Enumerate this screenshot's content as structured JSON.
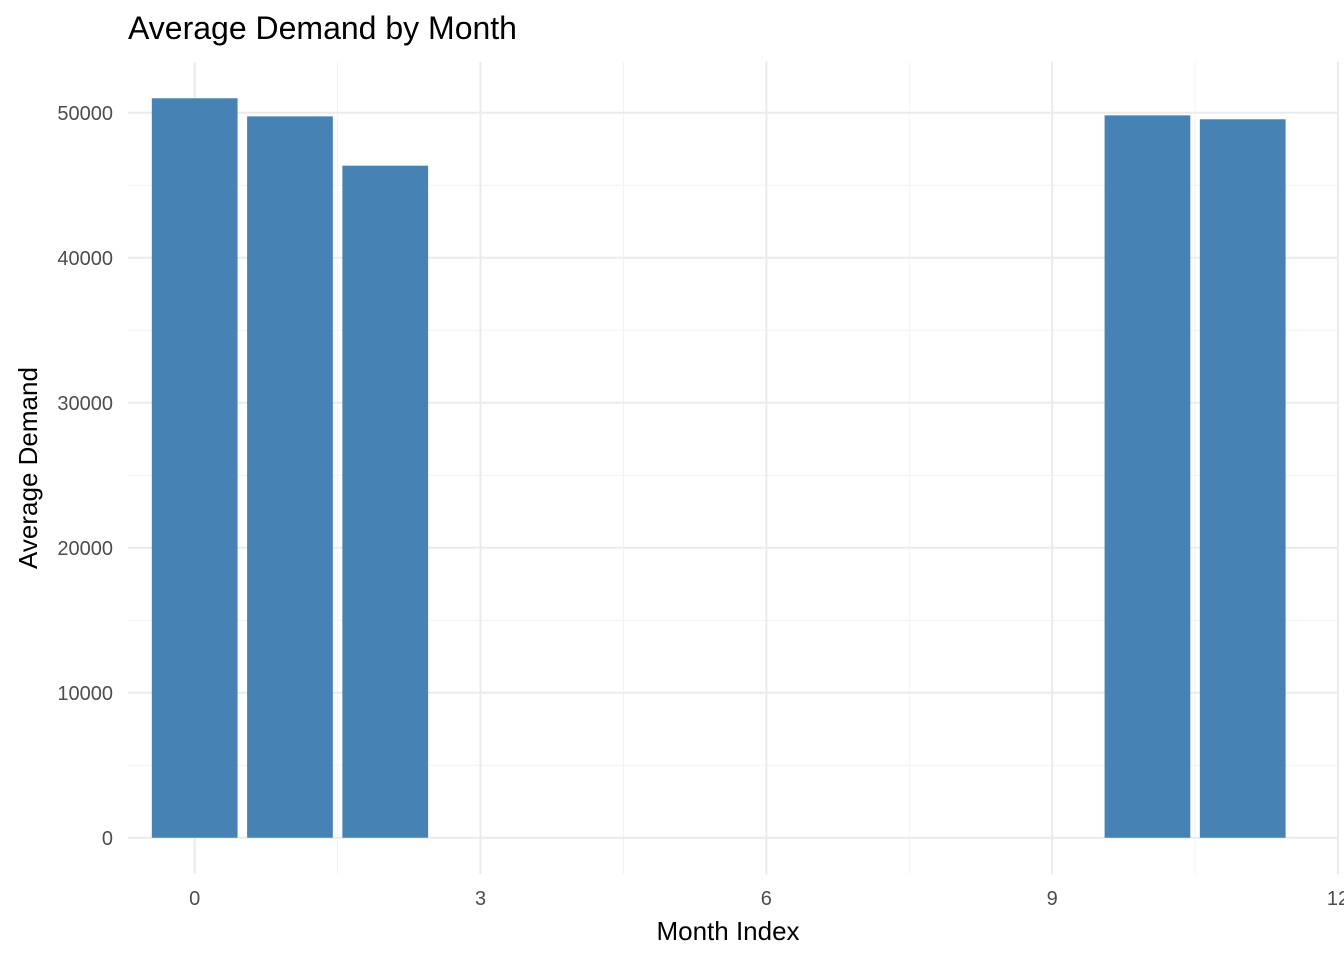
{
  "chart_data": {
    "type": "bar",
    "title": "Average Demand by Month",
    "xlabel": "Month Index",
    "ylabel": "Average Demand",
    "x": [
      0,
      1,
      2,
      10,
      11
    ],
    "values": [
      51000,
      49750,
      46350,
      49820,
      49550
    ],
    "xlim": [
      -0.7,
      12.0
    ],
    "ylim": [
      -2500,
      53500
    ],
    "x_ticks": [
      0,
      3,
      6,
      9,
      12
    ],
    "x_tick_labels": [
      "0",
      "3",
      "6",
      "9",
      "12"
    ],
    "y_ticks": [
      0,
      10000,
      20000,
      30000,
      40000,
      50000
    ],
    "y_tick_labels": [
      "0",
      "10000",
      "20000",
      "30000",
      "40000",
      "50000"
    ],
    "bar_color": "#4682B4",
    "grid": true,
    "legend": "none"
  }
}
